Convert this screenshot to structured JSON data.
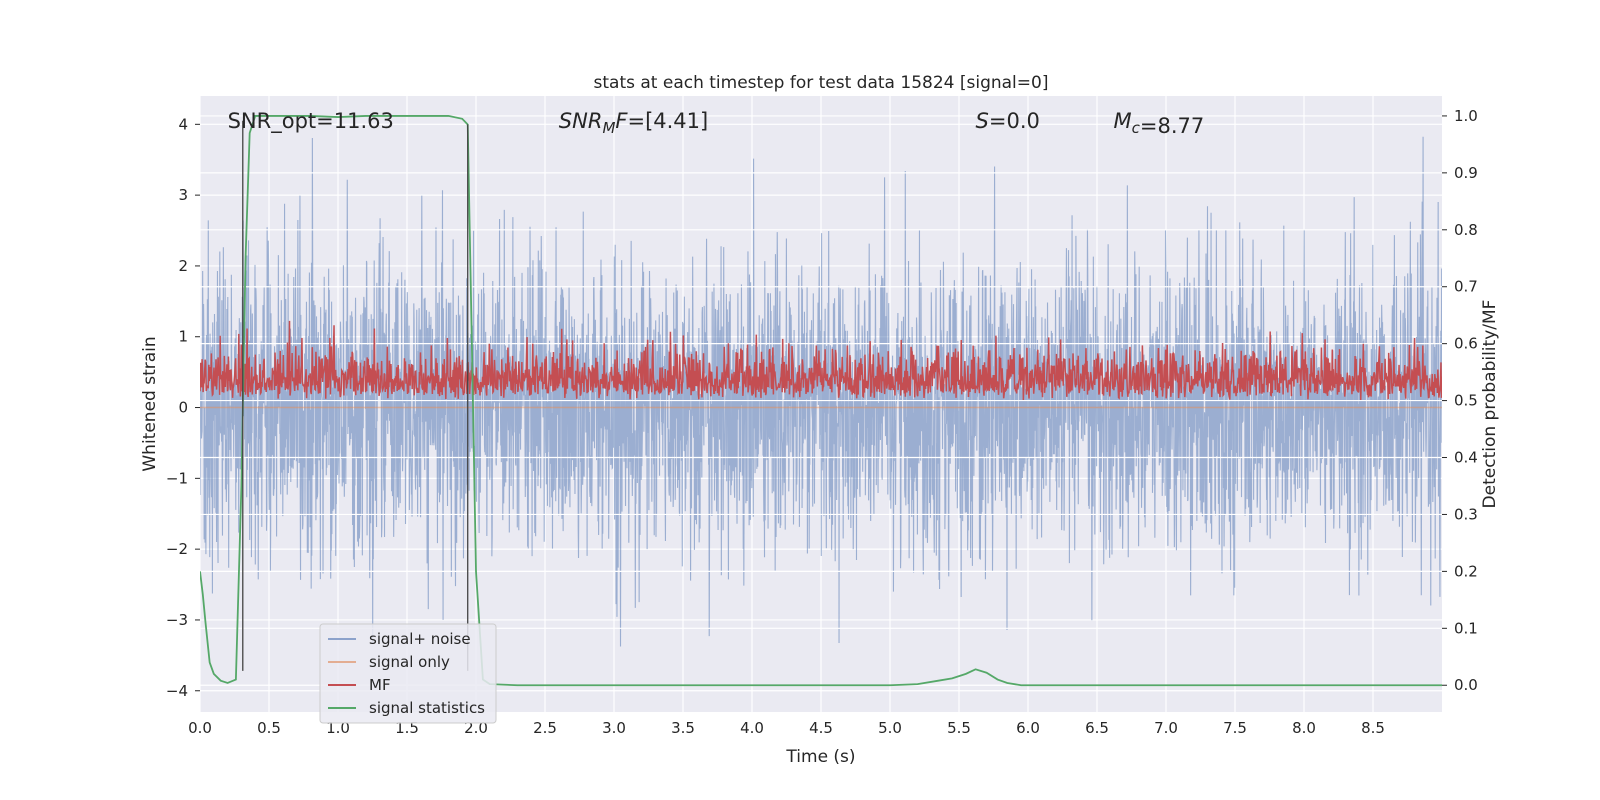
{
  "chart_data": {
    "type": "line",
    "title": "stats at each timestep for test data 15824 [signal=0]",
    "xlabel": "Time (s)",
    "ylabel": "Whitened strain",
    "y2label": "Detection probability/MF",
    "xlim": [
      0.0,
      9.0
    ],
    "ylim": [
      -4.3,
      4.4
    ],
    "y2lim": [
      -0.047,
      1.035
    ],
    "xticks": [
      "0.0",
      "0.5",
      "1.0",
      "1.5",
      "2.0",
      "2.5",
      "3.0",
      "3.5",
      "4.0",
      "4.5",
      "5.0",
      "5.5",
      "6.0",
      "6.5",
      "7.0",
      "7.5",
      "8.0",
      "8.5"
    ],
    "yticks": [
      "4",
      "3",
      "2",
      "1",
      "0",
      "−1",
      "−2",
      "−3",
      "−4"
    ],
    "y2ticks": [
      "1.0",
      "0.9",
      "0.8",
      "0.7",
      "0.6",
      "0.5",
      "0.4",
      "0.3",
      "0.2",
      "0.1",
      "0.0"
    ],
    "grid": true,
    "annotations": [
      {
        "text": "SNR_opt=11.63",
        "x": 0.2,
        "y": 4.05
      },
      {
        "text": "SNR_MF=[4.41]",
        "x": 2.6,
        "y": 4.05,
        "math": true
      },
      {
        "text": "S=0.0",
        "x": 5.62,
        "y": 4.05,
        "math": true
      },
      {
        "text": "M_c=8.77",
        "x": 6.62,
        "y": 4.05,
        "math": true
      }
    ],
    "vlines": [
      {
        "x": 0.31,
        "ymin": -3.72,
        "ymax": 4.05
      },
      {
        "x": 1.94,
        "ymin": -3.72,
        "ymax": 4.0
      }
    ],
    "series": [
      {
        "name": "signal+ noise",
        "color": "#4c72b0",
        "alpha": 0.5,
        "axis": "left",
        "description": "whitened strain noise, envelope roughly ±2 with peaks to ±3.8",
        "amplitude": 1.0,
        "seed": 15824
      },
      {
        "name": "signal only",
        "color": "#dd8452",
        "alpha": 0.5,
        "axis": "left",
        "x": [
          0.0,
          9.0
        ],
        "y": [
          0.0,
          0.0
        ]
      },
      {
        "name": "MF",
        "color": "#c44e52",
        "axis": "right",
        "description": "matched filter output between 0.5 and 0.65",
        "baseline": 0.5,
        "amplitude": 0.16
      },
      {
        "name": "signal statistics",
        "color": "#55a868",
        "axis": "right",
        "x": [
          0.0,
          0.02,
          0.04,
          0.07,
          0.1,
          0.15,
          0.2,
          0.26,
          0.3,
          0.33,
          0.36,
          0.4,
          0.5,
          0.8,
          1.0,
          1.2,
          1.5,
          1.8,
          1.9,
          1.94,
          1.97,
          2.0,
          2.05,
          2.1,
          2.3,
          3.0,
          4.0,
          5.0,
          5.2,
          5.35,
          5.45,
          5.55,
          5.62,
          5.7,
          5.78,
          5.85,
          5.95,
          6.1,
          7.0,
          8.0,
          9.0
        ],
        "y": [
          0.2,
          0.16,
          0.11,
          0.04,
          0.02,
          0.008,
          0.004,
          0.01,
          0.35,
          0.75,
          0.97,
          1.0,
          1.0,
          1.0,
          0.998,
          1.0,
          1.0,
          1.0,
          0.995,
          0.985,
          0.6,
          0.2,
          0.01,
          0.002,
          0.0,
          0.0,
          0.0,
          0.0,
          0.002,
          0.008,
          0.012,
          0.02,
          0.028,
          0.022,
          0.01,
          0.004,
          0.0,
          0.0,
          0.0,
          0.0,
          0.0
        ]
      }
    ],
    "legend": {
      "placement": "lower-left"
    }
  }
}
